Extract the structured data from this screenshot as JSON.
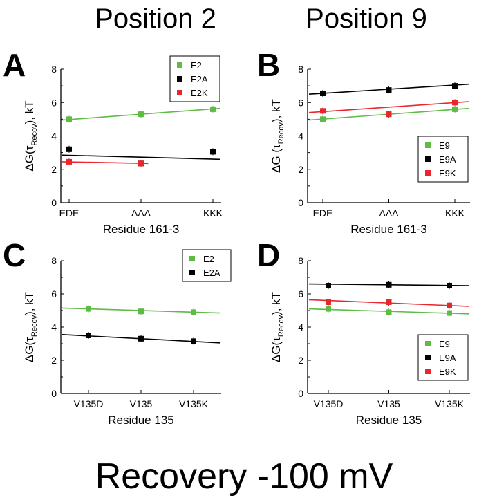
{
  "headers": {
    "col1": "Position 2",
    "col2": "Position 9",
    "footer": "Recovery -100 mV"
  },
  "colors": {
    "green": "#5dbb46",
    "black": "#000000",
    "red": "#e8262b"
  },
  "chart_data": [
    {
      "panel": "A",
      "type": "scatter",
      "categories": [
        "EDE",
        "AAA",
        "KKK"
      ],
      "ylim": [
        0,
        8
      ],
      "yticks": [
        0,
        2,
        4,
        6,
        8
      ],
      "xlabel": "Residue 161-3",
      "ylabel": "ΔG(τ",
      "ylabel_sub": "Recov",
      "ylabel_tail": "), kT",
      "legend_position": "top-right",
      "series": [
        {
          "name": "E2",
          "color": "green",
          "values": [
            5.0,
            5.3,
            5.6
          ],
          "fit": [
            4.95,
            5.65
          ]
        },
        {
          "name": "E2A",
          "color": "black",
          "values": [
            3.2,
            2.35,
            3.05
          ],
          "fit": [
            2.85,
            2.6
          ]
        },
        {
          "name": "E2K",
          "color": "red",
          "values": [
            2.45,
            2.35,
            null
          ],
          "fit": [
            2.45,
            2.35
          ],
          "fit_to": 1.1
        }
      ]
    },
    {
      "panel": "B",
      "type": "scatter",
      "categories": [
        "EDE",
        "AAA",
        "KKK"
      ],
      "ylim": [
        0,
        8
      ],
      "yticks": [
        0,
        2,
        4,
        6,
        8
      ],
      "xlabel": "Residue 161-3",
      "ylabel": "ΔG (τ",
      "ylabel_sub": "Recov",
      "ylabel_tail": "), kT",
      "legend_position": "bottom-right",
      "series": [
        {
          "name": "E9",
          "color": "green",
          "values": [
            5.0,
            5.3,
            5.6
          ],
          "fit": [
            4.95,
            5.65
          ]
        },
        {
          "name": "E9A",
          "color": "black",
          "values": [
            6.55,
            6.75,
            7.0
          ],
          "fit": [
            6.5,
            7.1
          ]
        },
        {
          "name": "E9K",
          "color": "red",
          "values": [
            5.5,
            5.3,
            6.0
          ],
          "fit": [
            5.4,
            6.05
          ]
        }
      ]
    },
    {
      "panel": "C",
      "type": "scatter",
      "categories": [
        "V135D",
        "V135",
        "V135K"
      ],
      "ylim": [
        0,
        8
      ],
      "yticks": [
        0,
        2,
        4,
        6,
        8
      ],
      "xlabel": "Residue 135",
      "ylabel": "ΔG(τ",
      "ylabel_sub": "Recov",
      "ylabel_tail": "), kT",
      "legend_position": "top-right",
      "series": [
        {
          "name": "E2",
          "color": "green",
          "values": [
            5.1,
            4.95,
            4.9
          ],
          "fit": [
            5.15,
            4.85
          ]
        },
        {
          "name": "E2A",
          "color": "black",
          "values": [
            3.5,
            3.3,
            3.15
          ],
          "fit": [
            3.55,
            3.05
          ]
        }
      ]
    },
    {
      "panel": "D",
      "type": "scatter",
      "categories": [
        "V135D",
        "V135",
        "V135K"
      ],
      "ylim": [
        0,
        8
      ],
      "yticks": [
        0,
        2,
        4,
        6,
        8
      ],
      "xlabel": "Residue 135",
      "ylabel": "ΔG(τ",
      "ylabel_sub": "Recov",
      "ylabel_tail": "), kT",
      "legend_position": "bottom-right",
      "series": [
        {
          "name": "E9",
          "color": "green",
          "values": [
            5.1,
            4.9,
            4.85
          ],
          "fit": [
            5.1,
            4.8
          ]
        },
        {
          "name": "E9A",
          "color": "black",
          "values": [
            6.5,
            6.55,
            6.5
          ],
          "fit": [
            6.6,
            6.5
          ]
        },
        {
          "name": "E9K",
          "color": "red",
          "values": [
            5.5,
            5.5,
            5.3
          ],
          "fit": [
            5.65,
            5.25
          ]
        }
      ]
    }
  ]
}
